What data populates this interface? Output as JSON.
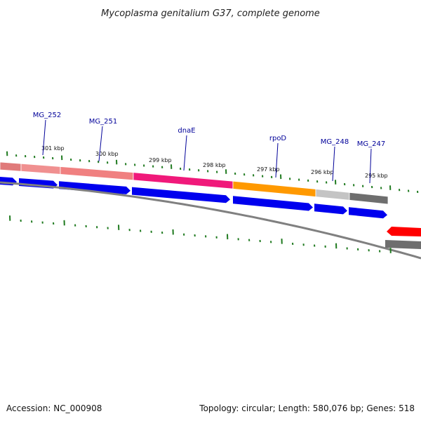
{
  "title": "Mycoplasma genitalium G37, complete genome",
  "footer": {
    "accession": "Accession: NC_000908",
    "summary": "Topology: circular; Length: 580,076 bp; Genes: 518"
  },
  "colors": {
    "background": "#ffffff",
    "tick": "#1f7a1f",
    "gene_arrow": "#0000ee",
    "gene_label": "#000099",
    "backbone": "#808080",
    "red_feature": "#ff0000"
  },
  "scale_labels": [
    {
      "kbp": 301,
      "text": "301 kbp"
    },
    {
      "kbp": 300,
      "text": "300 kbp"
    },
    {
      "kbp": 299,
      "text": "299 kbp"
    },
    {
      "kbp": 298,
      "text": "298 kbp"
    },
    {
      "kbp": 297,
      "text": "297 kbp"
    },
    {
      "kbp": 296,
      "text": "296 kbp"
    },
    {
      "kbp": 295,
      "text": "295 kbp"
    }
  ],
  "gene_labels": [
    {
      "name": "MG_252"
    },
    {
      "name": "MG_251"
    },
    {
      "name": "dnaE"
    },
    {
      "name": "rpoD"
    },
    {
      "name": "MG_248"
    },
    {
      "name": "MG_247"
    }
  ],
  "color_segments": [
    {
      "color": "#e07a7a"
    },
    {
      "color": "#f09090"
    },
    {
      "color": "#f08080"
    },
    {
      "color": "#f0197a"
    },
    {
      "color": "#ff9900"
    },
    {
      "color": "#c4c4c4"
    },
    {
      "color": "#6e6e6e"
    }
  ]
}
